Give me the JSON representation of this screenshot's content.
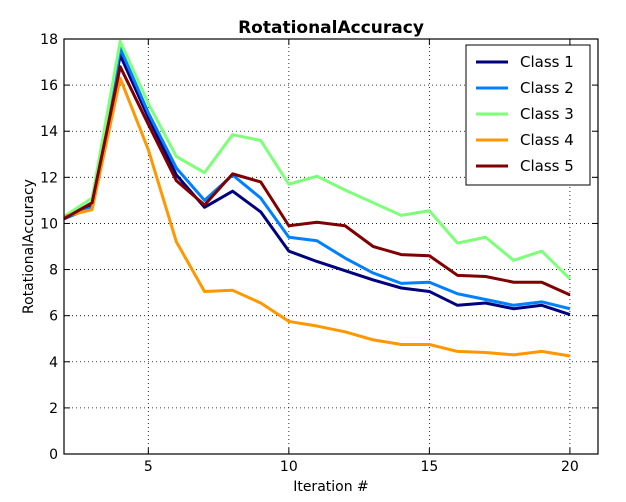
{
  "chart_data": {
    "type": "line",
    "title": "RotationalAccuracy",
    "xlabel": "Iteration #",
    "ylabel": "RotationalAccuracy",
    "xlim": [
      2,
      21
    ],
    "ylim": [
      0,
      18
    ],
    "xticks": [
      5,
      10,
      15,
      20
    ],
    "yticks": [
      0,
      2,
      4,
      6,
      8,
      10,
      12,
      14,
      16,
      18
    ],
    "grid": true,
    "legend_position": "top-right",
    "x": [
      2,
      3,
      4,
      5,
      6,
      7,
      8,
      9,
      10,
      11,
      12,
      13,
      14,
      15,
      16,
      17,
      18,
      19,
      20
    ],
    "series": [
      {
        "name": "Class 1",
        "color": "#00007f",
        "values": [
          10.2,
          10.8,
          17.3,
          14.6,
          12.1,
          10.7,
          11.4,
          10.5,
          8.8,
          8.35,
          7.95,
          7.55,
          7.2,
          7.05,
          6.45,
          6.55,
          6.3,
          6.45,
          6.05
        ]
      },
      {
        "name": "Class 2",
        "color": "#0080ff",
        "values": [
          10.2,
          10.7,
          17.6,
          14.8,
          12.4,
          11.0,
          12.1,
          11.1,
          9.4,
          9.25,
          8.5,
          7.85,
          7.4,
          7.45,
          6.95,
          6.7,
          6.45,
          6.6,
          6.3
        ]
      },
      {
        "name": "Class 3",
        "color": "#7dff7a",
        "values": [
          10.3,
          11.1,
          17.9,
          15.2,
          12.9,
          12.2,
          13.85,
          13.6,
          11.7,
          12.05,
          11.45,
          10.9,
          10.35,
          10.55,
          9.15,
          9.4,
          8.4,
          8.8,
          7.6
        ]
      },
      {
        "name": "Class 4",
        "color": "#ff9700",
        "values": [
          10.3,
          10.6,
          16.3,
          13.2,
          9.2,
          7.05,
          7.1,
          6.55,
          5.75,
          5.55,
          5.3,
          4.95,
          4.75,
          4.75,
          4.45,
          4.4,
          4.3,
          4.45,
          4.25
        ]
      },
      {
        "name": "Class 5",
        "color": "#7f0000",
        "values": [
          10.2,
          10.9,
          16.8,
          14.3,
          11.85,
          10.8,
          12.15,
          11.8,
          9.9,
          10.05,
          9.9,
          9.0,
          8.65,
          8.6,
          7.75,
          7.7,
          7.45,
          7.45,
          6.9
        ]
      }
    ]
  }
}
